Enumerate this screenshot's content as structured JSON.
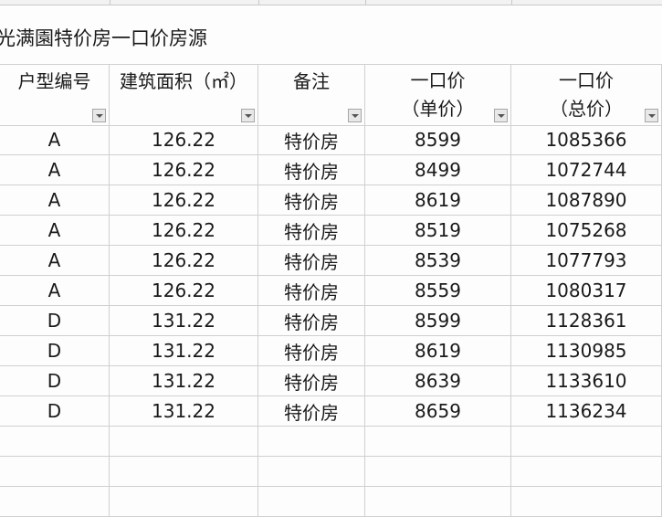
{
  "sheet": {
    "title": "光满園特价房一口价房源",
    "columns": [
      {
        "lines": [
          "户型编号"
        ]
      },
      {
        "lines": [
          "建筑面积（㎡）"
        ]
      },
      {
        "lines": [
          "备注"
        ]
      },
      {
        "lines": [
          "一口价",
          "（单价）"
        ]
      },
      {
        "lines": [
          "一口价",
          "（总价）"
        ]
      }
    ],
    "rows": [
      [
        "A",
        "126.22",
        "特价房",
        "8599",
        "1085366"
      ],
      [
        "A",
        "126.22",
        "特价房",
        "8499",
        "1072744"
      ],
      [
        "A",
        "126.22",
        "特价房",
        "8619",
        "1087890"
      ],
      [
        "A",
        "126.22",
        "特价房",
        "8519",
        "1075268"
      ],
      [
        "A",
        "126.22",
        "特价房",
        "8539",
        "1077793"
      ],
      [
        "A",
        "126.22",
        "特价房",
        "8559",
        "1080317"
      ],
      [
        "D",
        "131.22",
        "特价房",
        "8599",
        "1128361"
      ],
      [
        "D",
        "131.22",
        "特价房",
        "8619",
        "1130985"
      ],
      [
        "D",
        "131.22",
        "特价房",
        "8639",
        "1133610"
      ],
      [
        "D",
        "131.22",
        "特价房",
        "8659",
        "1136234"
      ]
    ],
    "empty_rows": 3
  }
}
